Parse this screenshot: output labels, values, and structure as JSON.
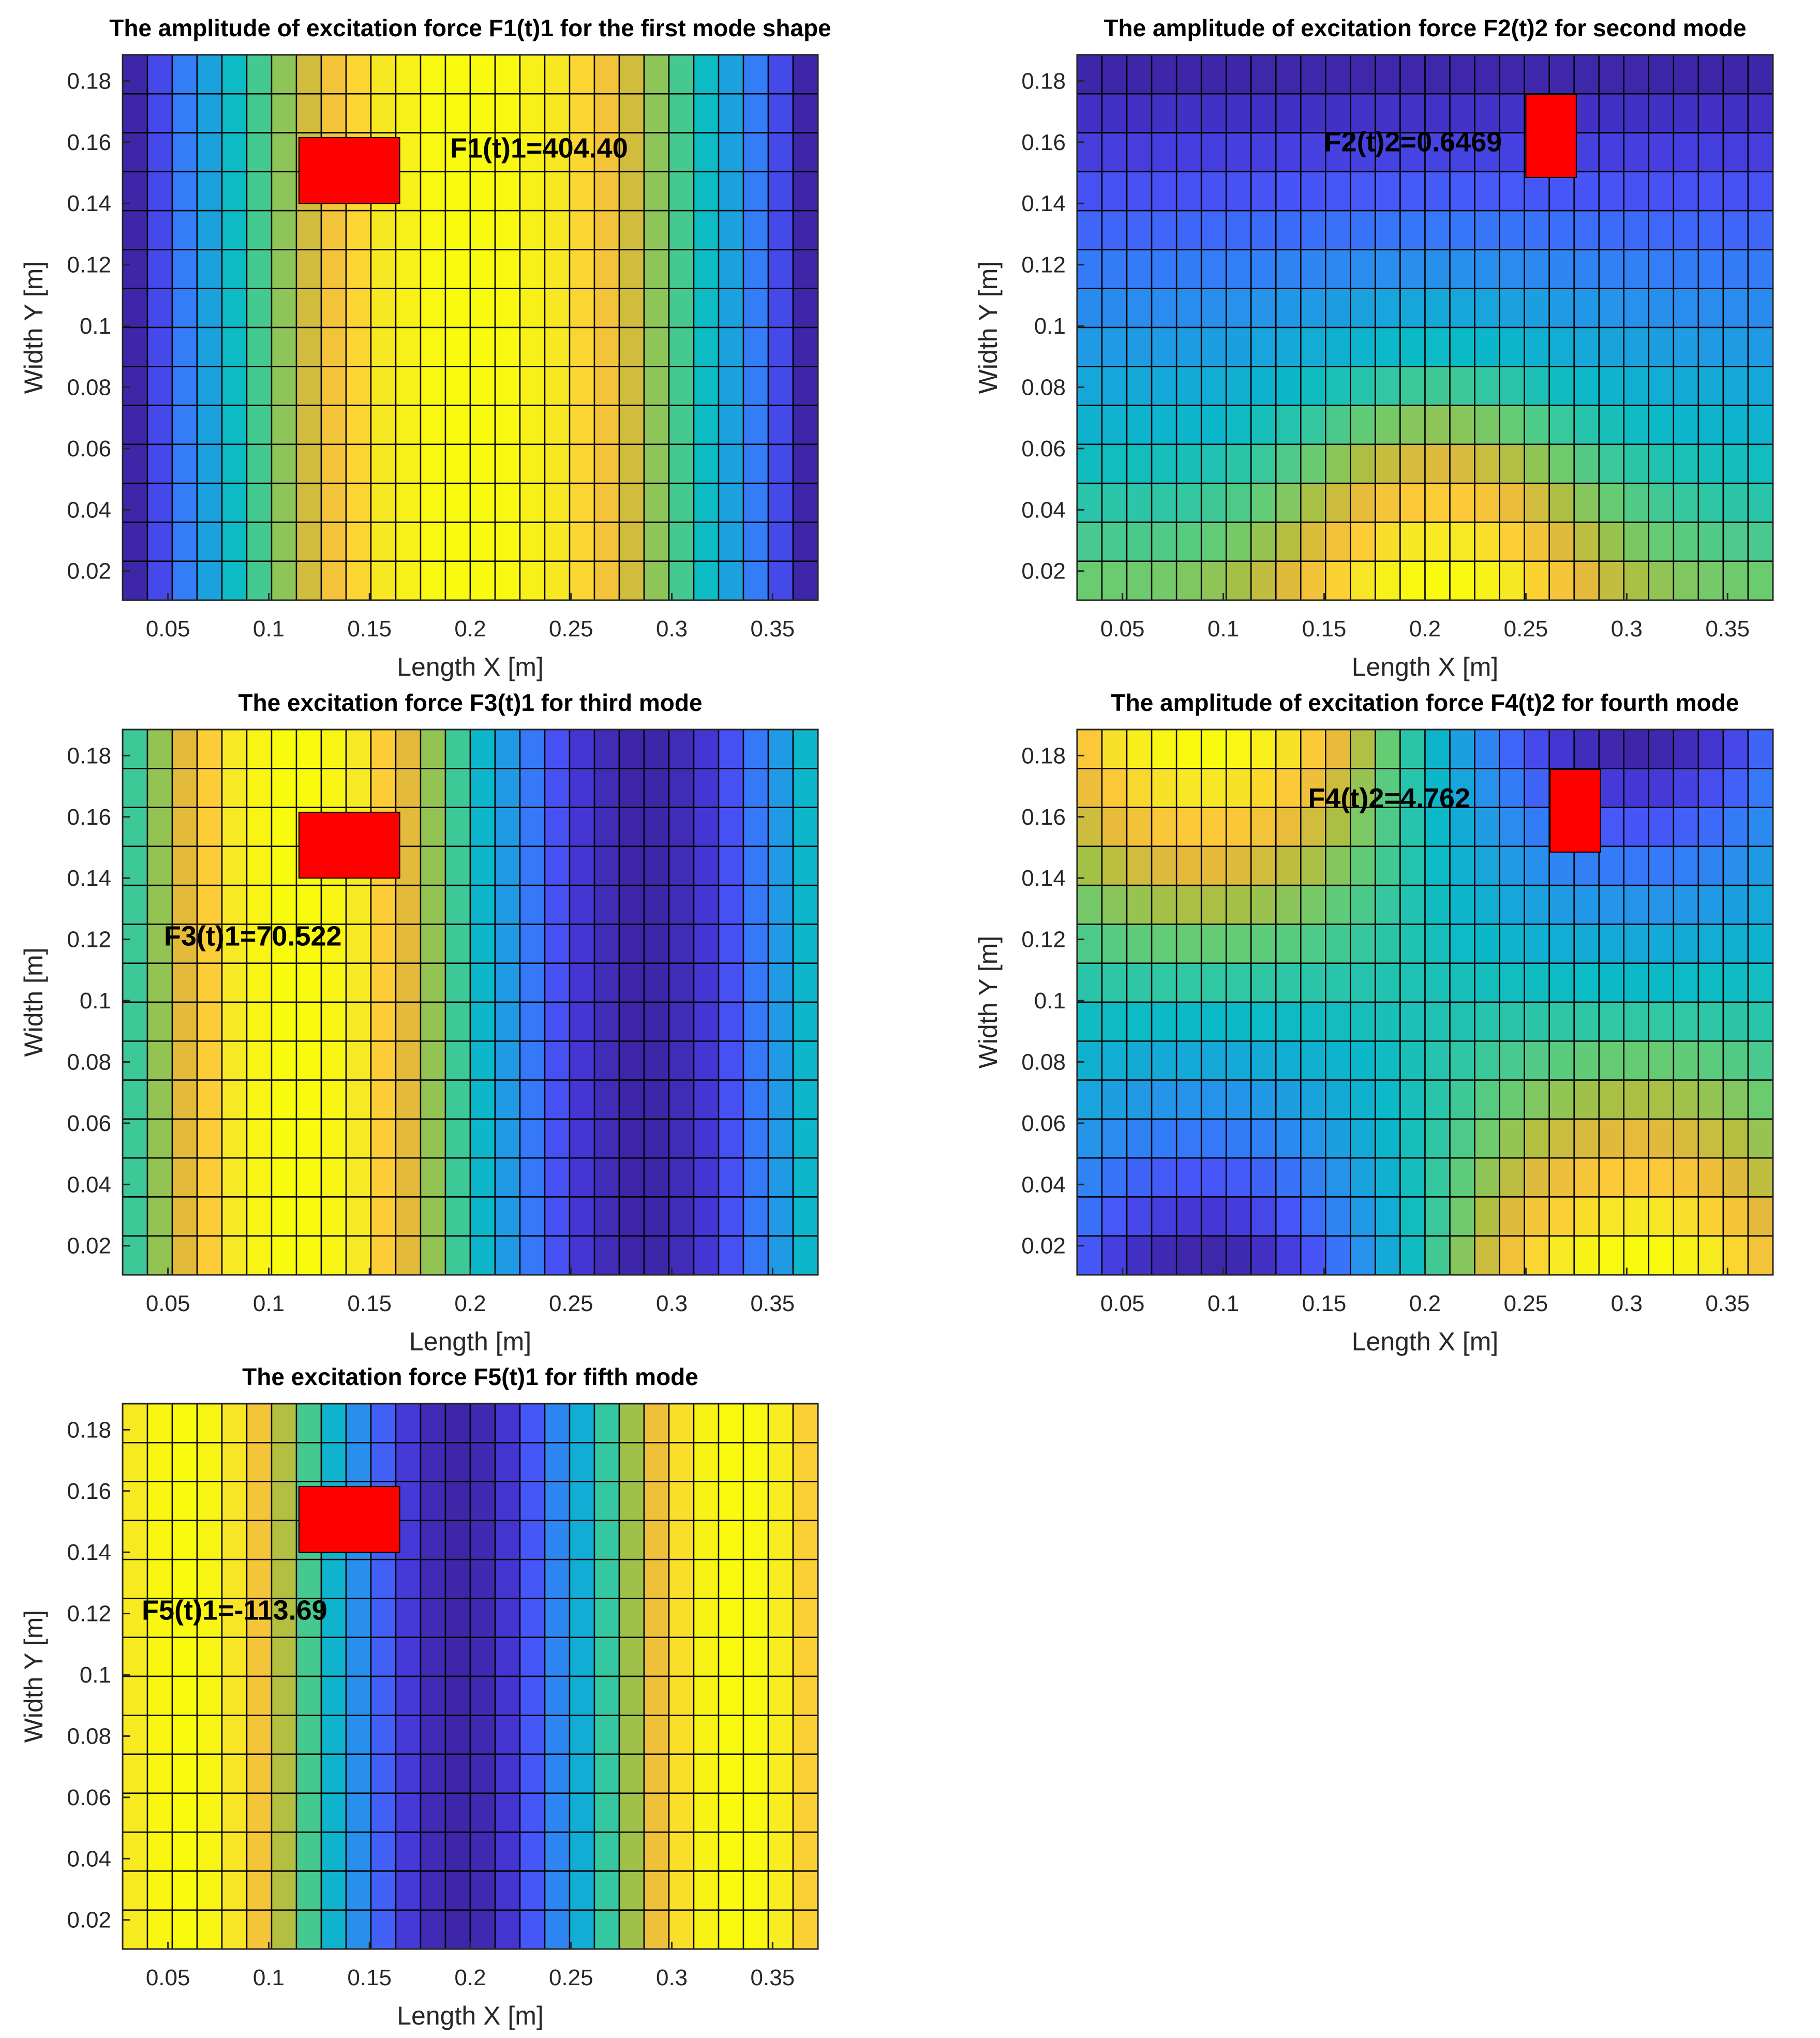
{
  "chart_data": [
    {
      "type": "heatmap",
      "title": "The amplitude of excitation force F1(t)1 for the first mode shape",
      "xlabel": "Length X [m]",
      "ylabel": "Width Y [m]",
      "xlim": [
        0.0275,
        0.3725
      ],
      "ylim": [
        0.0105,
        0.1885
      ],
      "xticks": [
        "0.05",
        "0.1",
        "0.15",
        "0.2",
        "0.25",
        "0.3",
        "0.35"
      ],
      "xtick_values": [
        0.05,
        0.1,
        0.15,
        0.2,
        0.25,
        0.3,
        0.35
      ],
      "yticks": [
        "0.02",
        "0.04",
        "0.06",
        "0.08",
        "0.1",
        "0.12",
        "0.14",
        "0.16",
        "0.18"
      ],
      "ytick_values": [
        0.02,
        0.04,
        0.06,
        0.08,
        0.1,
        0.12,
        0.14,
        0.16,
        0.18
      ],
      "grid_cols": 28,
      "grid_rows": 14,
      "colormap": "parula",
      "color_scale": "relative 0-1 (first mode shape along length)",
      "annotation": "F1(t)1=404.40",
      "annotation_position": [
        0.19,
        0.155
      ],
      "marker": {
        "x0": 0.115,
        "x1": 0.165,
        "y0": 0.14,
        "y1": 0.1615,
        "color": "#ff0000"
      }
    },
    {
      "type": "heatmap",
      "title": "The amplitude of excitation force F2(t)2 for second mode",
      "xlabel": "Length X [m]",
      "ylabel": "Width Y [m]",
      "xlim": [
        0.0275,
        0.3725
      ],
      "ylim": [
        0.0105,
        0.1885
      ],
      "xticks": [
        "0.05",
        "0.1",
        "0.15",
        "0.2",
        "0.25",
        "0.3",
        "0.35"
      ],
      "xtick_values": [
        0.05,
        0.1,
        0.15,
        0.2,
        0.25,
        0.3,
        0.35
      ],
      "yticks": [
        "0.02",
        "0.04",
        "0.06",
        "0.08",
        "0.1",
        "0.12",
        "0.14",
        "0.16",
        "0.18"
      ],
      "ytick_values": [
        0.02,
        0.04,
        0.06,
        0.08,
        0.1,
        0.12,
        0.14,
        0.16,
        0.18
      ],
      "grid_cols": 28,
      "grid_rows": 14,
      "colormap": "parula",
      "color_scale": "relative 0-1 (second mode shape across width)",
      "annotation": "F2(t)2=0.6469",
      "annotation_position": [
        0.15,
        0.157
      ],
      "marker": {
        "x0": 0.25,
        "x1": 0.275,
        "y0": 0.1485,
        "y1": 0.1755,
        "color": "#ff0000"
      }
    },
    {
      "type": "heatmap",
      "title": "The excitation force F3(t)1 for third mode",
      "xlabel": "Length [m]",
      "ylabel": "Width [m]",
      "xlim": [
        0.0275,
        0.3725
      ],
      "ylim": [
        0.0105,
        0.1885
      ],
      "xticks": [
        "0.05",
        "0.1",
        "0.15",
        "0.2",
        "0.25",
        "0.3",
        "0.35"
      ],
      "xtick_values": [
        0.05,
        0.1,
        0.15,
        0.2,
        0.25,
        0.3,
        0.35
      ],
      "yticks": [
        "0.02",
        "0.04",
        "0.06",
        "0.08",
        "0.1",
        "0.12",
        "0.14",
        "0.16",
        "0.18"
      ],
      "ytick_values": [
        0.02,
        0.04,
        0.06,
        0.08,
        0.1,
        0.12,
        0.14,
        0.16,
        0.18
      ],
      "grid_cols": 28,
      "grid_rows": 14,
      "colormap": "parula",
      "color_scale": "relative 0-1 (third mode shape along length)",
      "annotation": "F3(t)1=70.522",
      "annotation_position": [
        0.048,
        0.118
      ],
      "marker": {
        "x0": 0.115,
        "x1": 0.165,
        "y0": 0.14,
        "y1": 0.1615,
        "color": "#ff0000"
      }
    },
    {
      "type": "heatmap",
      "title": "The amplitude of excitation force F4(t)2 for fourth mode",
      "xlabel": "Length X [m]",
      "ylabel": "Width Y [m]",
      "xlim": [
        0.0275,
        0.3725
      ],
      "ylim": [
        0.0105,
        0.1885
      ],
      "xticks": [
        "0.05",
        "0.1",
        "0.15",
        "0.2",
        "0.25",
        "0.3",
        "0.35"
      ],
      "xtick_values": [
        0.05,
        0.1,
        0.15,
        0.2,
        0.25,
        0.3,
        0.35
      ],
      "yticks": [
        "0.02",
        "0.04",
        "0.06",
        "0.08",
        "0.1",
        "0.12",
        "0.14",
        "0.16",
        "0.18"
      ],
      "ytick_values": [
        0.02,
        0.04,
        0.06,
        0.08,
        0.1,
        0.12,
        0.14,
        0.16,
        0.18
      ],
      "grid_cols": 28,
      "grid_rows": 14,
      "colormap": "parula",
      "color_scale": "relative 0-1 (fourth mode shape)",
      "annotation": "F4(t)2=4.762",
      "annotation_position": [
        0.142,
        0.163
      ],
      "marker": {
        "x0": 0.262,
        "x1": 0.287,
        "y0": 0.1485,
        "y1": 0.1755,
        "color": "#ff0000"
      }
    },
    {
      "type": "heatmap",
      "title": "The excitation force F5(t)1 for fifth mode",
      "xlabel": "Length X [m]",
      "ylabel": "Width Y [m]",
      "xlim": [
        0.0275,
        0.3725
      ],
      "ylim": [
        0.0105,
        0.1885
      ],
      "xticks": [
        "0.05",
        "0.1",
        "0.15",
        "0.2",
        "0.25",
        "0.3",
        "0.35"
      ],
      "xtick_values": [
        0.05,
        0.1,
        0.15,
        0.2,
        0.25,
        0.3,
        0.35
      ],
      "yticks": [
        "0.02",
        "0.04",
        "0.06",
        "0.08",
        "0.1",
        "0.12",
        "0.14",
        "0.16",
        "0.18"
      ],
      "ytick_values": [
        0.02,
        0.04,
        0.06,
        0.08,
        0.1,
        0.12,
        0.14,
        0.16,
        0.18
      ],
      "grid_cols": 28,
      "grid_rows": 14,
      "colormap": "parula",
      "color_scale": "relative 0-1 (fifth mode shape along length)",
      "annotation": "F5(t)1=-113.69",
      "annotation_position": [
        0.037,
        0.118
      ],
      "marker": {
        "x0": 0.115,
        "x1": 0.165,
        "y0": 0.14,
        "y1": 0.1615,
        "color": "#ff0000"
      }
    }
  ]
}
